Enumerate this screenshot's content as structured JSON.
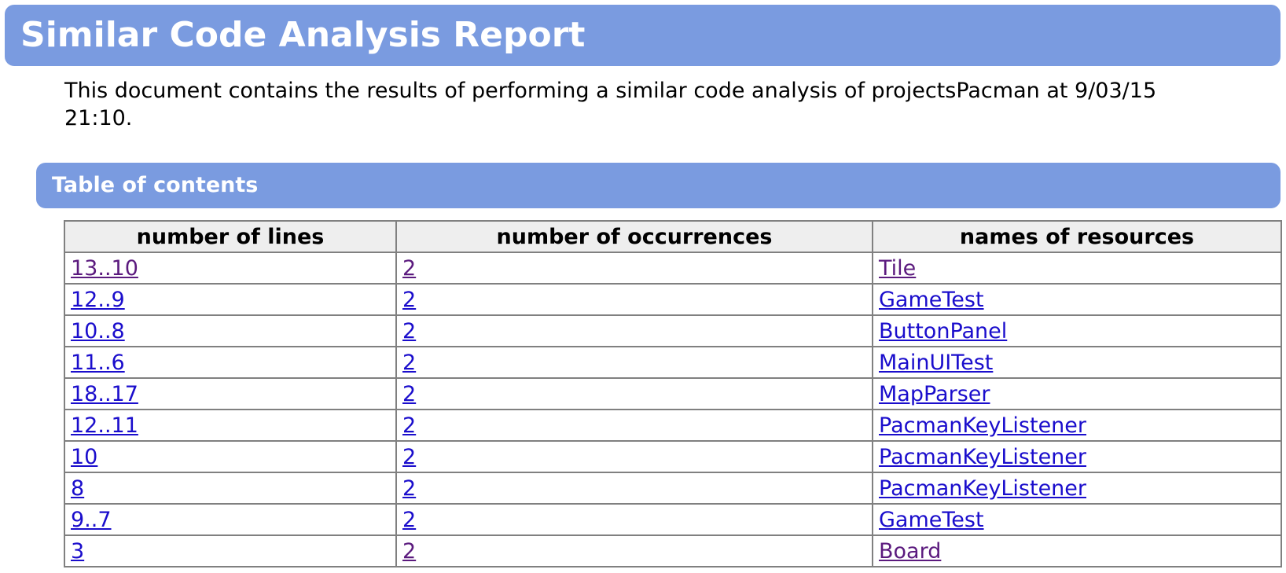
{
  "header": {
    "title": "Similar Code Analysis Report"
  },
  "intro": {
    "text": "This document contains the results of performing a similar code analysis of projectsPacman at 9/03/15 21:10."
  },
  "toc": {
    "title": "Table of contents",
    "columns": [
      "number of lines",
      "number of occurrences",
      "names of resources"
    ],
    "rows": [
      {
        "lines": "13..10",
        "occurrences": "2",
        "resource": "Tile",
        "visited": true
      },
      {
        "lines": "12..9",
        "occurrences": "2",
        "resource": "GameTest",
        "visited": false
      },
      {
        "lines": "10..8",
        "occurrences": "2",
        "resource": "ButtonPanel",
        "visited": false
      },
      {
        "lines": "11..6",
        "occurrences": "2",
        "resource": "MainUITest",
        "visited": false
      },
      {
        "lines": "18..17",
        "occurrences": "2",
        "resource": "MapParser",
        "visited": false
      },
      {
        "lines": "12..11",
        "occurrences": "2",
        "resource": "PacmanKeyListener",
        "visited": false
      },
      {
        "lines": "10",
        "occurrences": "2",
        "resource": "PacmanKeyListener",
        "visited": false
      },
      {
        "lines": "8",
        "occurrences": "2",
        "resource": "PacmanKeyListener",
        "visited": false
      },
      {
        "lines": "9..7",
        "occurrences": "2",
        "resource": "GameTest",
        "visited": false
      },
      {
        "lines": "3",
        "occurrences": "2",
        "resource": "Board",
        "visited": true
      }
    ]
  },
  "colors": {
    "header_bg": "#7a9be0",
    "link": "#1a0dcc",
    "link_visited": "#5b1a7e",
    "table_header_bg": "#eeeeee"
  }
}
